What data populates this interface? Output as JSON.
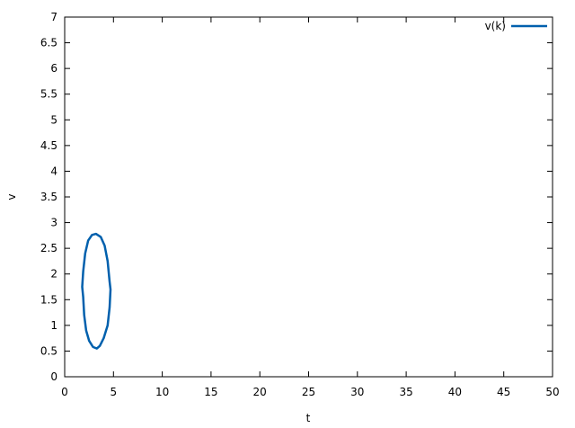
{
  "chart_data": {
    "type": "line",
    "title": "",
    "xlabel": "t",
    "ylabel": "v",
    "xlim": [
      0,
      50
    ],
    "ylim": [
      0,
      7
    ],
    "x_ticks": [
      0,
      5,
      10,
      15,
      20,
      25,
      30,
      35,
      40,
      45,
      50
    ],
    "y_ticks": [
      "0",
      "0.5",
      "1",
      "1.5",
      "2",
      "2.5",
      "3",
      "3.5",
      "4",
      "4.5",
      "5",
      "5.5",
      "6",
      "6.5",
      "7"
    ],
    "grid": false,
    "legend_position": "top-right",
    "series": [
      {
        "name": "v(k)",
        "color": "#0060ad",
        "closed": true,
        "points": [
          [
            3.2,
            2.78
          ],
          [
            3.7,
            2.72
          ],
          [
            4.1,
            2.55
          ],
          [
            4.4,
            2.25
          ],
          [
            4.6,
            1.85
          ],
          [
            4.7,
            1.7
          ],
          [
            4.6,
            1.35
          ],
          [
            4.4,
            1.0
          ],
          [
            4.0,
            0.75
          ],
          [
            3.6,
            0.6
          ],
          [
            3.3,
            0.55
          ],
          [
            2.9,
            0.58
          ],
          [
            2.5,
            0.7
          ],
          [
            2.2,
            0.9
          ],
          [
            2.0,
            1.2
          ],
          [
            1.9,
            1.55
          ],
          [
            1.8,
            1.75
          ],
          [
            1.9,
            2.05
          ],
          [
            2.1,
            2.4
          ],
          [
            2.4,
            2.65
          ],
          [
            2.8,
            2.76
          ]
        ]
      }
    ]
  }
}
